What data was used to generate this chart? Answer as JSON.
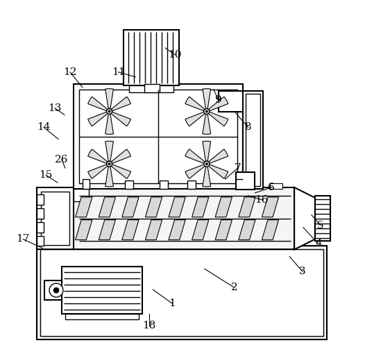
{
  "background_color": "#ffffff",
  "line_color": "#000000",
  "figsize": [
    5.26,
    5.07
  ],
  "dpi": 100,
  "labels_data": [
    [
      1,
      248,
      438,
      220,
      418
    ],
    [
      2,
      338,
      415,
      295,
      388
    ],
    [
      3,
      437,
      392,
      418,
      370
    ],
    [
      4,
      460,
      352,
      438,
      328
    ],
    [
      5,
      463,
      325,
      450,
      310
    ],
    [
      6,
      392,
      270,
      368,
      278
    ],
    [
      7,
      343,
      242,
      325,
      258
    ],
    [
      8,
      358,
      183,
      340,
      162
    ],
    [
      9,
      315,
      143,
      308,
      128
    ],
    [
      10,
      252,
      78,
      238,
      68
    ],
    [
      11,
      170,
      103,
      195,
      110
    ],
    [
      12,
      100,
      103,
      118,
      125
    ],
    [
      13,
      78,
      155,
      92,
      165
    ],
    [
      14,
      62,
      183,
      83,
      200
    ],
    [
      15,
      65,
      252,
      82,
      263
    ],
    [
      16,
      378,
      288,
      358,
      282
    ],
    [
      17,
      32,
      345,
      60,
      358
    ],
    [
      18,
      215,
      470,
      215,
      453
    ],
    [
      26,
      88,
      230,
      93,
      242
    ]
  ]
}
